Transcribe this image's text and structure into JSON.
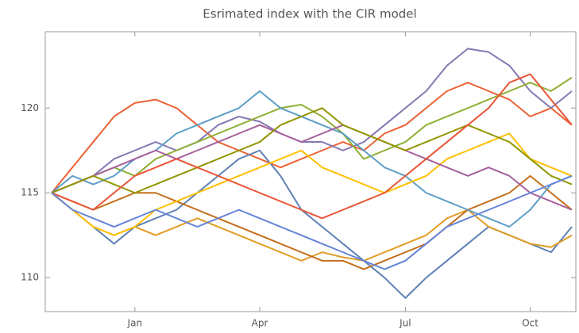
{
  "chart_data": {
    "type": "line",
    "title": "Esrimated index with the CIR model",
    "categories": [
      null,
      null,
      null,
      null,
      "Jan",
      null,
      null,
      null,
      null,
      null,
      "Apr",
      null,
      null,
      null,
      null,
      null,
      null,
      "Jul",
      null,
      null,
      null,
      null,
      null,
      "Oct",
      null,
      null
    ],
    "ylim": [
      108,
      124.5
    ],
    "yticks": [
      110,
      115,
      120
    ],
    "grid": false,
    "series": [
      {
        "color": "#eb6235",
        "values": [
          115,
          116.5,
          118,
          119.5,
          120.3,
          120.5,
          120,
          119,
          118,
          117.5,
          117,
          116.5,
          117,
          117.5,
          118,
          117.5,
          118.5,
          119,
          120,
          121,
          121.5,
          121,
          120.5,
          119.5,
          120,
          119
        ]
      },
      {
        "color": "#8778b3",
        "values": [
          115,
          115.5,
          116,
          117,
          117.5,
          118,
          117.5,
          118,
          119,
          119.5,
          119.2,
          118.5,
          118,
          118,
          117.5,
          118,
          119,
          120,
          121,
          122.5,
          123.5,
          123.3,
          122.5,
          121,
          120,
          121
        ]
      },
      {
        "color": "#5e81b5",
        "values": [
          115,
          114,
          113,
          112,
          113,
          113.5,
          114,
          115,
          116,
          117,
          117.5,
          116,
          114,
          113,
          112,
          111,
          110,
          108.8,
          110,
          111,
          112,
          113,
          112.5,
          112,
          111.5,
          113
        ]
      },
      {
        "color": "#e19c24",
        "values": [
          115,
          114,
          113,
          112.5,
          113,
          112.5,
          113,
          113.5,
          113,
          112.5,
          112,
          111.5,
          111,
          111.5,
          111.2,
          111,
          111.5,
          112,
          112.5,
          113.5,
          114,
          113,
          112.5,
          112,
          111.8,
          112.5
        ]
      },
      {
        "color": "#8fb032",
        "values": [
          115,
          115.5,
          116,
          116.5,
          116,
          117,
          117.5,
          118,
          118.5,
          119,
          119.5,
          120,
          120.2,
          119.5,
          118.5,
          117,
          117.5,
          118,
          119,
          119.5,
          120,
          120.5,
          121,
          121.5,
          121,
          121.8
        ]
      },
      {
        "color": "#c56e1a",
        "values": [
          115,
          114.5,
          114,
          114.5,
          115,
          115,
          114.5,
          114,
          113.5,
          113,
          112.5,
          112,
          111.5,
          111,
          111,
          110.5,
          111,
          111.5,
          112,
          113,
          114,
          114.5,
          115,
          116,
          115,
          114
        ]
      },
      {
        "color": "#5d9ec7",
        "values": [
          115,
          116,
          115.5,
          116,
          117,
          117.5,
          118.5,
          119,
          119.5,
          120,
          121,
          120,
          119.5,
          119,
          118.5,
          117.5,
          116.5,
          116,
          115,
          114.5,
          114,
          113.5,
          113,
          114,
          115.5,
          116
        ]
      },
      {
        "color": "#ffbf00",
        "values": [
          115,
          114,
          113,
          112.5,
          113,
          114,
          114.5,
          115,
          115.5,
          116,
          116.5,
          117,
          117.5,
          116.5,
          116,
          115.5,
          115,
          115.5,
          116,
          117,
          117.5,
          118,
          118.5,
          117,
          116.5,
          116
        ]
      },
      {
        "color": "#a5609d",
        "values": [
          115,
          115.5,
          116,
          116.5,
          117,
          117.5,
          117,
          117.5,
          118,
          118.5,
          119,
          118.5,
          118,
          118.5,
          119,
          118.5,
          118,
          117.5,
          117,
          116.5,
          116,
          116.5,
          116,
          115,
          114.5,
          114
        ]
      },
      {
        "color": "#929600",
        "values": [
          115,
          115.5,
          116,
          115.5,
          115,
          115.5,
          116,
          116.5,
          117,
          117.5,
          118,
          119,
          119.5,
          120,
          119,
          118.5,
          118,
          117.5,
          118,
          118.5,
          119,
          118.5,
          118,
          117,
          116,
          115.5
        ]
      },
      {
        "color": "#e95536",
        "values": [
          115,
          114.5,
          114,
          115,
          116,
          116.5,
          117,
          116.5,
          116,
          115.5,
          115,
          114.5,
          114,
          113.5,
          114,
          114.5,
          115,
          116,
          117,
          118,
          119,
          120,
          121.5,
          122,
          120.5,
          119
        ]
      },
      {
        "color": "#6685d9",
        "values": [
          115,
          114,
          113.5,
          113,
          113.5,
          114,
          113.5,
          113,
          113.5,
          114,
          113.5,
          113,
          112.5,
          112,
          111.5,
          111,
          110.5,
          111,
          112,
          113,
          113.5,
          114,
          114.5,
          115,
          115.5,
          116
        ]
      }
    ]
  }
}
